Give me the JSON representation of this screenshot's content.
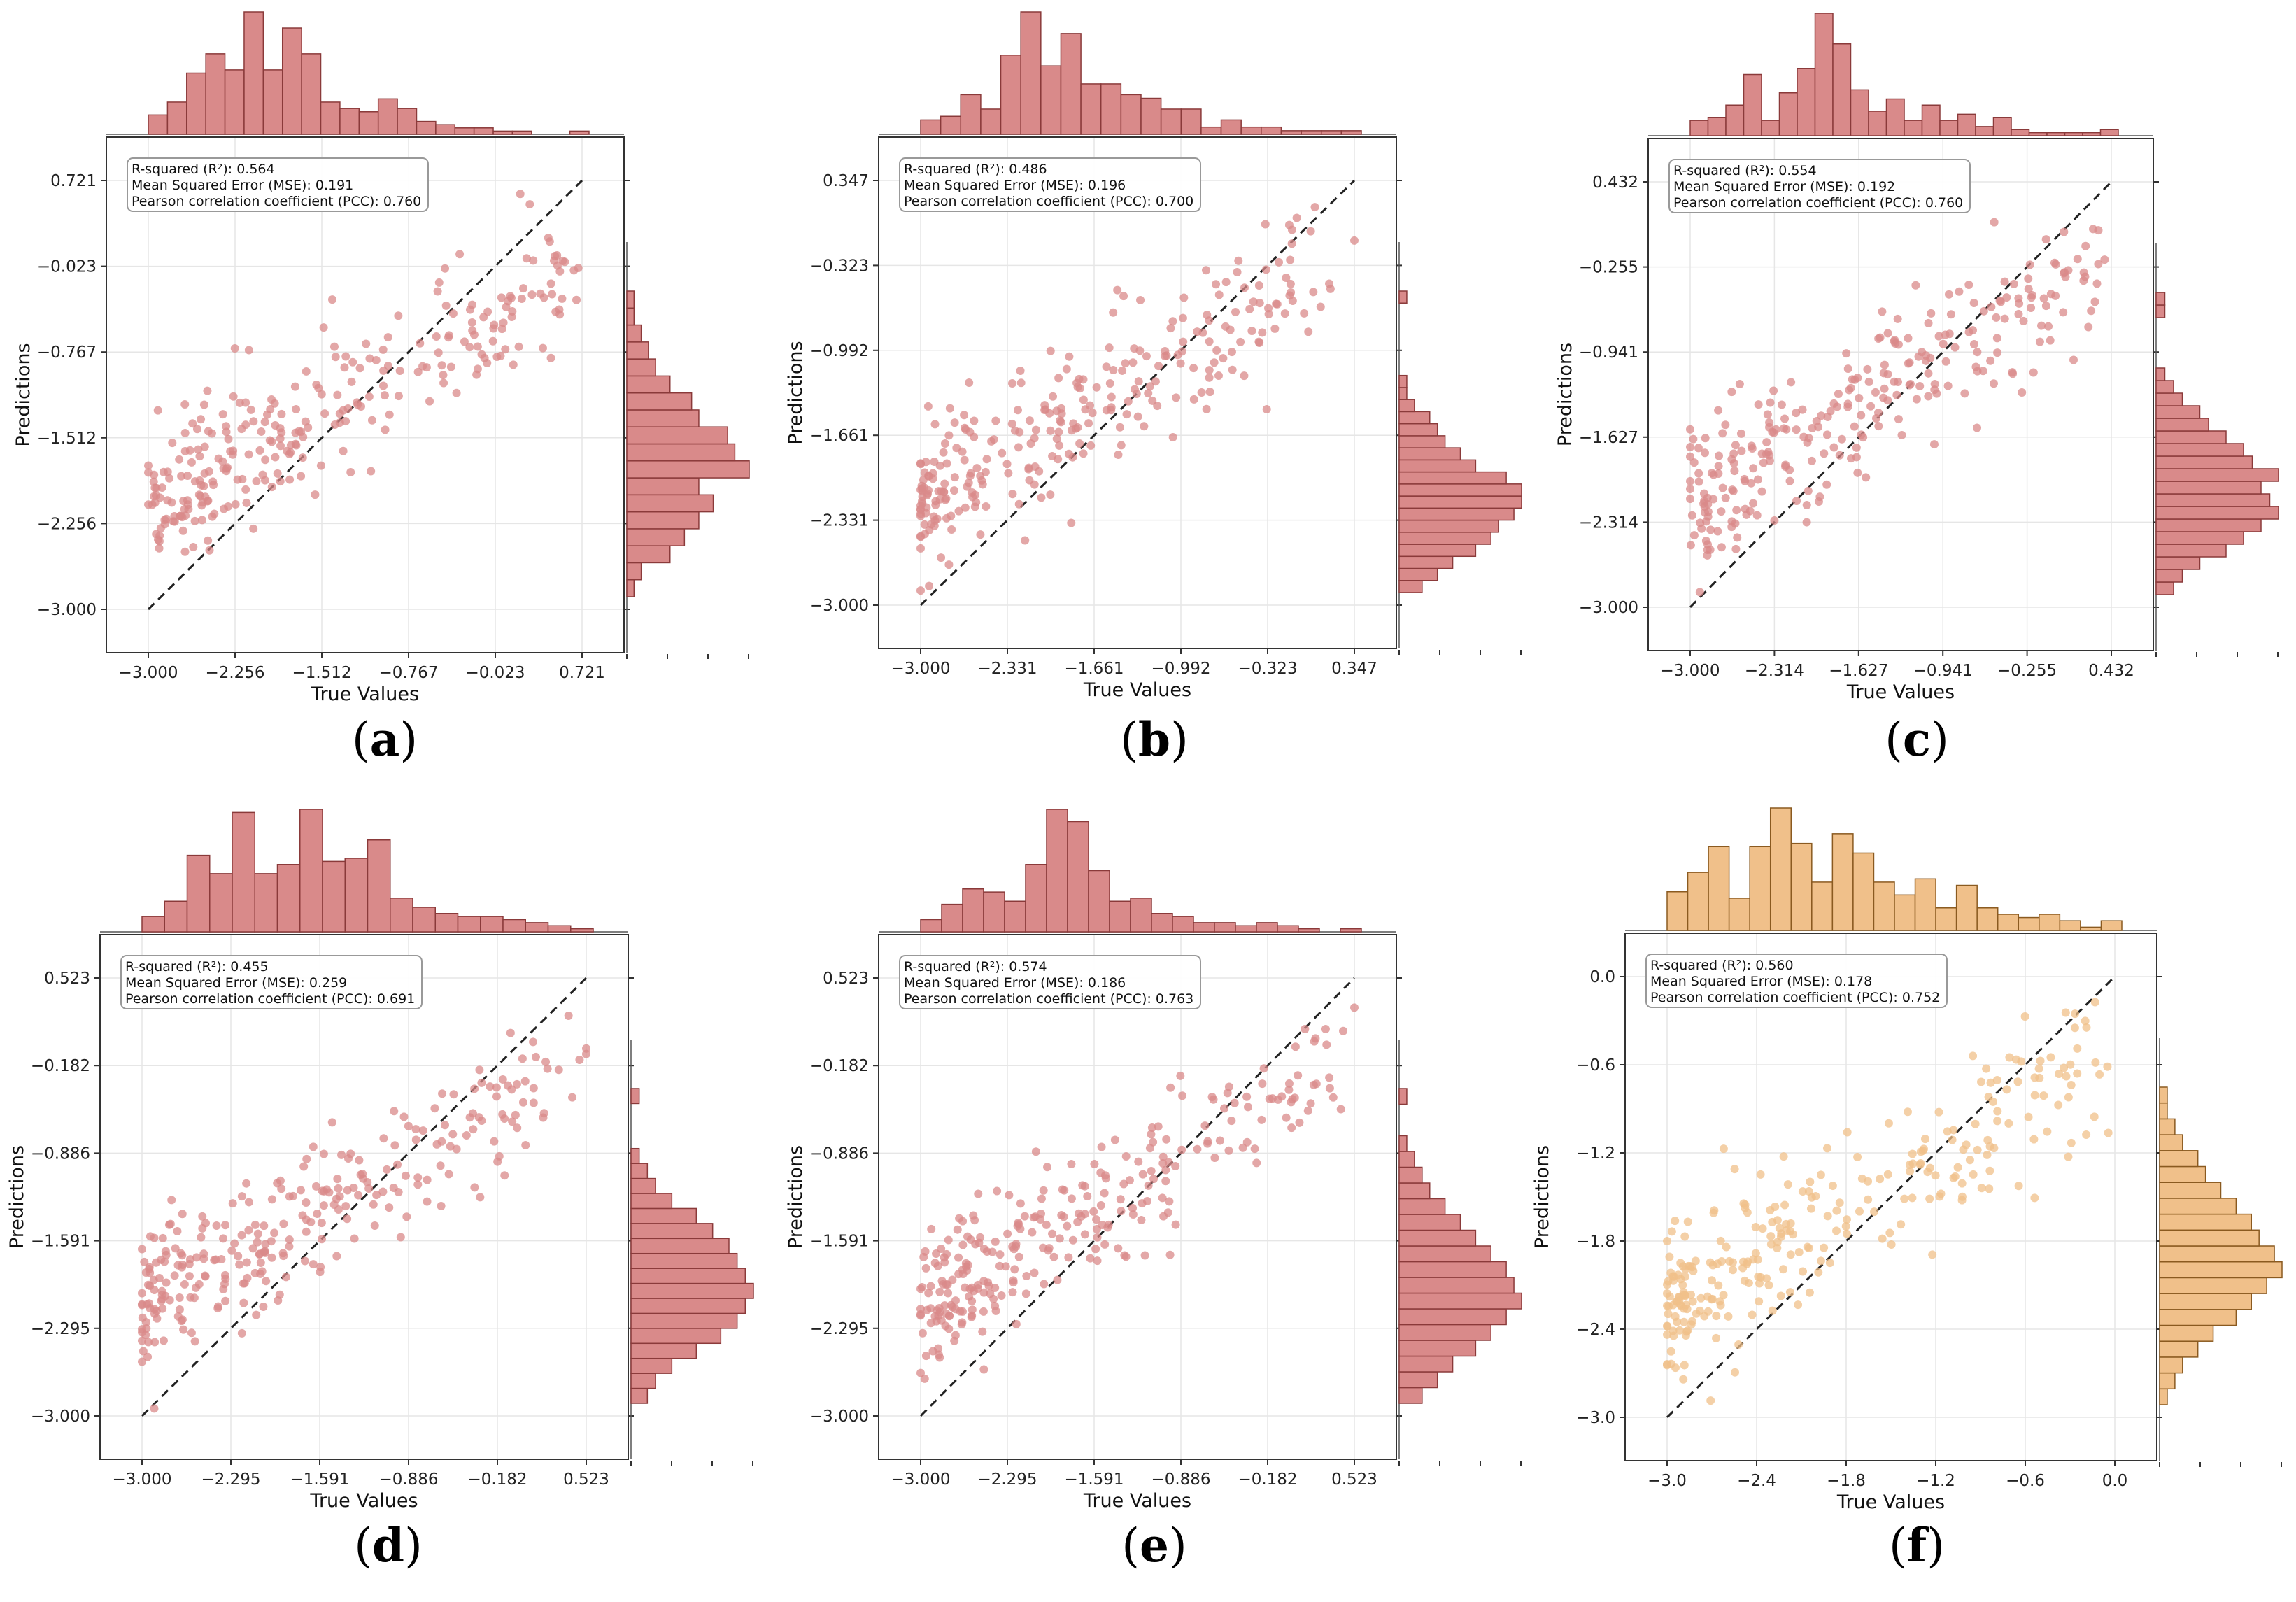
{
  "figure": {
    "colors": {
      "red": "#d98a8a",
      "red_edge": "#8a3a3a",
      "orange": "#f0c08a",
      "orange_edge": "#8a5a20",
      "diag": "#222222"
    },
    "stats_labels": {
      "r2": "R-squared (R²): ",
      "mse": "Mean Squared Error (MSE): ",
      "pcc": "Pearson correlation coefficient (PCC): "
    }
  },
  "chart_data": [
    {
      "panel": "(a)",
      "type": "scatter",
      "color": "red",
      "seed": 11,
      "xlabel": "True Values",
      "ylabel": "Predictions",
      "range": [
        -3.0,
        0.721
      ],
      "ticks": [
        "-3.000",
        "-2.256",
        "-1.512",
        "-0.767",
        "-0.023",
        "0.721"
      ],
      "stats": {
        "r2": "0.564",
        "mse": "0.191",
        "pcc": "0.760"
      },
      "hist_x": [
        6,
        10,
        19,
        25,
        20,
        38,
        20,
        33,
        25,
        10,
        8,
        7,
        11,
        8,
        4,
        3,
        2,
        2,
        1,
        1,
        0,
        0,
        1
      ],
      "hist_y": [
        1,
        2,
        6,
        8,
        10,
        12,
        10,
        17,
        15,
        14,
        10,
        9,
        6,
        4,
        3,
        2,
        1,
        1
      ]
    },
    {
      "panel": "(b)",
      "type": "scatter",
      "color": "red",
      "seed": 23,
      "xlabel": "True Values",
      "ylabel": "Predictions",
      "range": [
        -3.0,
        0.347
      ],
      "ticks": [
        "-3.000",
        "-2.331",
        "-1.661",
        "-0.992",
        "-0.323",
        "0.347"
      ],
      "stats": {
        "r2": "0.486",
        "mse": "0.196",
        "pcc": "0.700"
      },
      "hist_x": [
        4,
        5,
        11,
        7,
        22,
        34,
        19,
        28,
        14,
        14,
        11,
        10,
        7,
        7,
        2,
        4,
        2,
        2,
        1,
        1,
        1,
        1
      ],
      "hist_y": [
        3,
        5,
        7,
        10,
        12,
        13,
        15,
        16,
        16,
        14,
        10,
        8,
        6,
        5,
        4,
        2,
        1,
        1,
        0,
        0,
        0,
        0,
        0,
        0,
        1
      ]
    },
    {
      "panel": "(c)",
      "type": "scatter",
      "color": "red",
      "seed": 37,
      "xlabel": "True Values",
      "ylabel": "Predictions",
      "range": [
        -3.0,
        0.432
      ],
      "ticks": [
        "-3.000",
        "-2.314",
        "-1.627",
        "-0.941",
        "-0.255",
        "0.432"
      ],
      "stats": {
        "r2": "0.554",
        "mse": "0.192",
        "pcc": "0.760"
      },
      "hist_x": [
        5,
        6,
        10,
        20,
        5,
        14,
        22,
        40,
        30,
        15,
        8,
        12,
        5,
        10,
        5,
        7,
        3,
        6,
        2,
        1,
        1,
        1,
        1,
        2
      ],
      "hist_y": [
        2,
        3,
        5,
        8,
        10,
        12,
        14,
        13,
        12,
        14,
        11,
        10,
        8,
        6,
        5,
        3,
        2,
        1,
        0,
        0,
        0,
        0,
        1,
        1
      ]
    },
    {
      "panel": "(d)",
      "type": "scatter",
      "color": "red",
      "seed": 41,
      "xlabel": "True Values",
      "ylabel": "Predictions",
      "range": [
        -3.0,
        0.523
      ],
      "ticks": [
        "-3.000",
        "-2.295",
        "-1.591",
        "-0.886",
        "-0.182",
        "0.523"
      ],
      "stats": {
        "r2": "0.455",
        "mse": "0.259",
        "pcc": "0.691"
      },
      "hist_x": [
        5,
        10,
        25,
        19,
        39,
        19,
        22,
        40,
        23,
        24,
        30,
        11,
        8,
        6,
        5,
        5,
        4,
        3,
        2,
        1
      ],
      "hist_y": [
        2,
        3,
        5,
        8,
        11,
        13,
        14,
        15,
        14,
        13,
        12,
        10,
        8,
        5,
        3,
        2,
        1,
        0,
        0,
        0,
        1
      ]
    },
    {
      "panel": "(e)",
      "type": "scatter",
      "color": "red",
      "seed": 53,
      "xlabel": "True Values",
      "ylabel": "Predictions",
      "range": [
        -3.0,
        0.523
      ],
      "ticks": [
        "-3.000",
        "-2.295",
        "-1.591",
        "-0.886",
        "-0.182",
        "0.523"
      ],
      "stats": {
        "r2": "0.574",
        "mse": "0.186",
        "pcc": "0.763"
      },
      "hist_x": [
        4,
        9,
        14,
        13,
        10,
        22,
        40,
        36,
        20,
        10,
        11,
        6,
        5,
        3,
        3,
        2,
        3,
        2,
        1,
        0,
        1
      ],
      "hist_y": [
        3,
        5,
        7,
        10,
        12,
        14,
        16,
        15,
        14,
        12,
        10,
        8,
        6,
        4,
        3,
        2,
        1,
        0,
        0,
        1
      ]
    },
    {
      "panel": "(f)",
      "type": "scatter",
      "color": "orange",
      "seed": 67,
      "xlabel": "True Values",
      "ylabel": "Predictions",
      "range": [
        -3.0,
        0.0
      ],
      "ticks": [
        "-3.0",
        "-2.4",
        "-1.8",
        "-1.2",
        "-0.6",
        "0.0"
      ],
      "stats": {
        "r2": "0.560",
        "mse": "0.178",
        "pcc": "0.752"
      },
      "hist_x": [
        12,
        18,
        26,
        10,
        26,
        38,
        27,
        15,
        30,
        24,
        15,
        11,
        16,
        7,
        14,
        7,
        5,
        4,
        5,
        3,
        1,
        3
      ],
      "hist_y": [
        1,
        2,
        3,
        5,
        7,
        10,
        12,
        14,
        16,
        15,
        13,
        12,
        10,
        8,
        6,
        5,
        3,
        2,
        1,
        1
      ]
    }
  ]
}
